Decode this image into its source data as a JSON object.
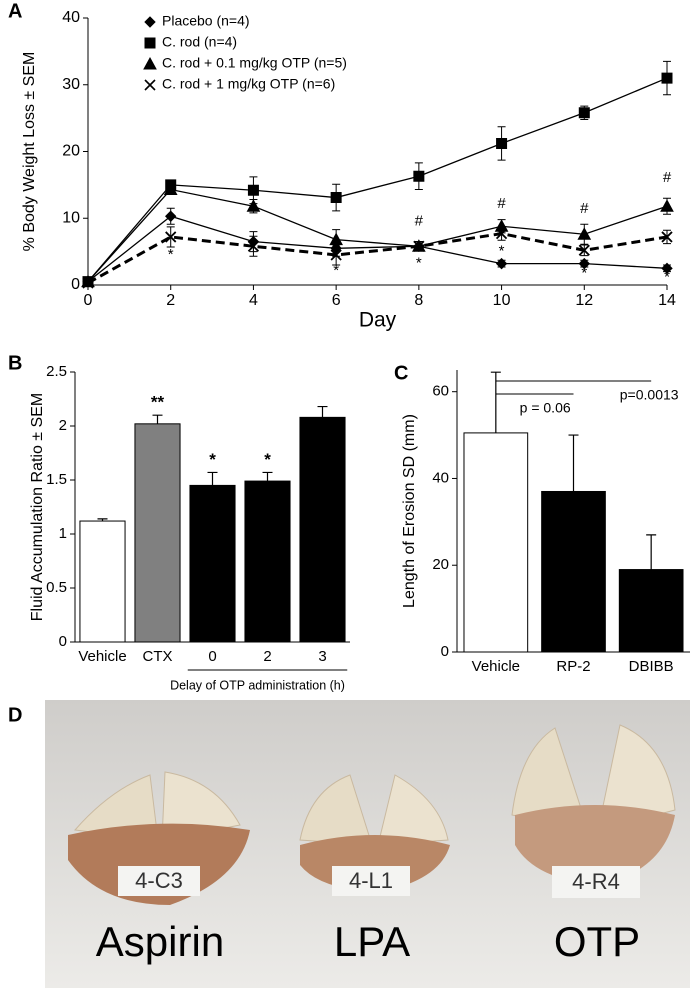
{
  "chart_data": [
    {
      "type": "line",
      "panel": "A",
      "ylabel": "% Body Weight Loss ± SEM",
      "xlabel": "Day",
      "x": [
        0,
        2,
        4,
        6,
        8,
        10,
        12,
        14
      ],
      "xlim": [
        0,
        14
      ],
      "xticks": [
        0,
        2,
        4,
        6,
        8,
        10,
        12,
        14
      ],
      "ylim": [
        0,
        40
      ],
      "yticks": [
        0,
        10,
        20,
        30,
        40
      ],
      "legend": "upper left",
      "series": [
        {
          "name": "Placebo (n=4)",
          "color": "#000000",
          "marker": "diamond",
          "dashed": false,
          "values": [
            0.5,
            10.3,
            6.5,
            5.5,
            5.8,
            3.2,
            3.2,
            2.5
          ],
          "errors": [
            0.3,
            1.2,
            1.5,
            1.2,
            0.7,
            0.5,
            0.5,
            0.5
          ]
        },
        {
          "name": "C. rod (n=4)",
          "color": "#000000",
          "marker": "square",
          "dashed": false,
          "values": [
            0.5,
            15.0,
            14.2,
            13.1,
            16.3,
            21.2,
            25.8,
            31.0
          ],
          "errors": [
            0.3,
            0.5,
            2.0,
            2.0,
            2.0,
            2.5,
            1.0,
            2.5
          ]
        },
        {
          "name": "C. rod + 0.1 mg/kg OTP (n=5)",
          "color": "#000000",
          "marker": "triangle",
          "dashed": false,
          "values": [
            0.5,
            14.3,
            11.8,
            6.8,
            5.8,
            8.8,
            7.6,
            11.8
          ],
          "errors": [
            0.3,
            0.5,
            1.0,
            1.5,
            0.7,
            1.0,
            1.5,
            1.2
          ]
        },
        {
          "name": "C. rod + 1 mg/kg OTP (n=6)",
          "color": "#000000",
          "marker": "x",
          "dashed": true,
          "values": [
            0.3,
            7.2,
            5.8,
            4.5,
            5.8,
            7.7,
            5.2,
            7.2
          ],
          "errors": [
            0.3,
            1.5,
            1.5,
            1.5,
            0.7,
            1.0,
            0.8,
            1.0
          ]
        }
      ],
      "annotations": [
        {
          "text": "*",
          "x": 2,
          "y": 4.5
        },
        {
          "text": "*",
          "x": 6,
          "y": 2.1
        },
        {
          "text": "*",
          "x": 8,
          "y": 3.2
        },
        {
          "text": "*",
          "x": 10,
          "y": 5.0
        },
        {
          "text": "*",
          "x": 12,
          "y": 1.7
        },
        {
          "text": "*",
          "x": 14,
          "y": 1.1
        },
        {
          "text": "#",
          "x": 8,
          "y": 9.5
        },
        {
          "text": "#",
          "x": 10,
          "y": 12.1
        },
        {
          "text": "#",
          "x": 12,
          "y": 11.4
        },
        {
          "text": "#",
          "x": 14,
          "y": 16.0
        }
      ]
    },
    {
      "type": "bar",
      "panel": "B",
      "ylabel": "Fluid Accumulation Ratio ± SEM",
      "categories": [
        "Vehicle",
        "CTX",
        "0",
        "2",
        "3"
      ],
      "values": [
        1.12,
        2.02,
        1.45,
        1.49,
        2.08
      ],
      "errors": [
        0.02,
        0.08,
        0.12,
        0.08,
        0.1
      ],
      "colors": [
        "#ffffff",
        "#808080",
        "#000000",
        "#000000",
        "#000000"
      ],
      "significance": [
        null,
        "**",
        "*",
        "*",
        null
      ],
      "group": {
        "label": "Delay of OTP administration (h)",
        "categories": [
          "0",
          "2",
          "3"
        ]
      },
      "ylim": [
        0,
        2.5
      ],
      "yticks": [
        0,
        0.5,
        1,
        1.5,
        2,
        2.5
      ]
    },
    {
      "type": "bar",
      "panel": "C",
      "ylabel": "Length of Erosion SD (mm)",
      "categories": [
        "Vehicle",
        "RP-2",
        "DBIBB"
      ],
      "values": [
        50.5,
        37.0,
        19.0
      ],
      "errors": [
        14.0,
        13.0,
        8.0
      ],
      "colors": [
        "#ffffff",
        "#000000",
        "#000000"
      ],
      "comparisons": [
        {
          "between": [
            "Vehicle",
            "DBIBB"
          ],
          "label": "p=0.0013"
        },
        {
          "between": [
            "Vehicle",
            "RP-2"
          ],
          "label": "p = 0.06"
        }
      ],
      "ylim": [
        0,
        65
      ],
      "yticks": [
        0,
        20,
        40,
        60
      ]
    }
  ],
  "photo": {
    "panel": "D",
    "specimens": [
      {
        "tag": "4-C3",
        "label": "Aspirin"
      },
      {
        "tag": "4-L1",
        "label": "LPA"
      },
      {
        "tag": "4-R4",
        "label": "OTP"
      }
    ]
  }
}
